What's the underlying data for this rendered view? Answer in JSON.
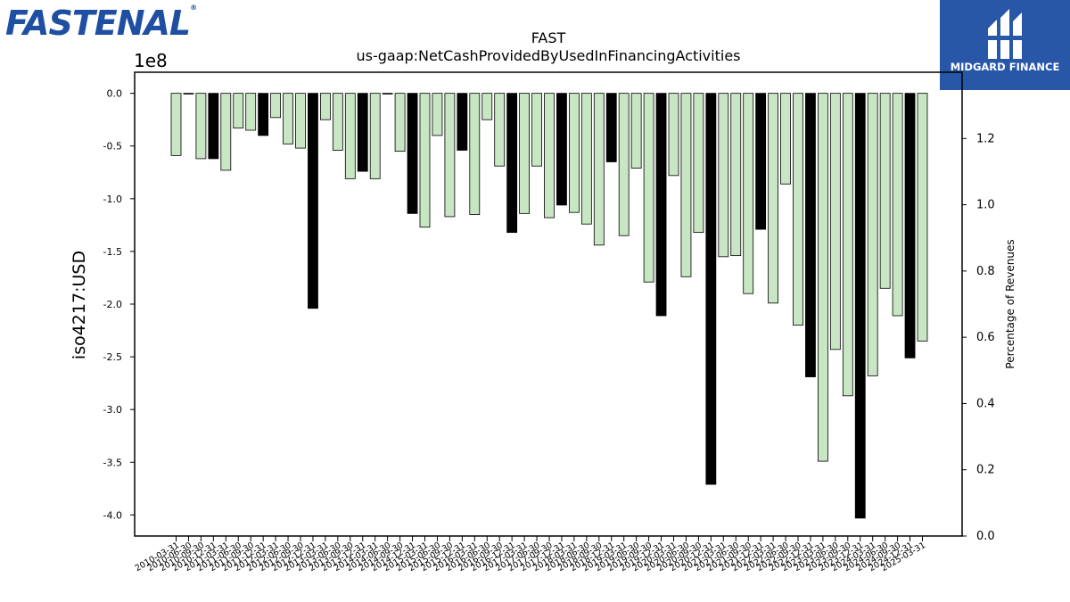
{
  "branding": {
    "left_logo_text": "FASTENAL",
    "right_logo_text": "MIDGARD FINANCE",
    "brand_color": "#1f4fa3",
    "right_logo_bg": "#2857a8"
  },
  "chart_data": {
    "type": "bar",
    "title": "FAST",
    "subtitle": "us-gaap:NetCashProvidedByUsedInFinancingActivities",
    "ylabel": "iso4217:USD",
    "y_offset_label": "1e8",
    "y2label": "Percentage of Revenues",
    "ylim": [
      -4.2,
      0.2
    ],
    "y_ticks": [
      0.0,
      -0.5,
      -1.0,
      -1.5,
      -2.0,
      -2.5,
      -3.0,
      -3.5,
      -4.0
    ],
    "y2lim": [
      0.0,
      1.4
    ],
    "y2_ticks": [
      0.0,
      0.2,
      0.4,
      0.6,
      0.8,
      1.0,
      1.2
    ],
    "colors": {
      "quarterly": "#c8e6c3",
      "annual": "#000000",
      "edge": "#000000"
    },
    "categories": [
      "2010-03-31",
      "2010-06-30",
      "2010-09-30",
      "2010-12-31",
      "2011-03-31",
      "2011-06-30",
      "2011-09-30",
      "2011-12-31",
      "2012-03-31",
      "2012-06-30",
      "2012-09-30",
      "2012-12-31",
      "2013-03-31",
      "2013-06-30",
      "2013-09-30",
      "2013-12-31",
      "2014-03-31",
      "2014-06-30",
      "2014-09-30",
      "2014-12-31",
      "2015-03-31",
      "2015-06-30",
      "2015-09-30",
      "2015-12-31",
      "2016-03-31",
      "2016-06-30",
      "2016-09-30",
      "2016-12-31",
      "2017-03-31",
      "2017-06-30",
      "2017-09-30",
      "2017-12-31",
      "2018-03-31",
      "2018-06-30",
      "2018-09-30",
      "2018-12-31",
      "2019-03-31",
      "2019-06-30",
      "2019-09-30",
      "2019-12-31",
      "2020-03-31",
      "2020-06-30",
      "2020-09-30",
      "2020-12-31",
      "2021-03-31",
      "2021-06-30",
      "2021-09-30",
      "2021-12-31",
      "2022-03-31",
      "2022-06-30",
      "2022-09-30",
      "2022-12-31",
      "2023-03-31",
      "2023-06-30",
      "2023-09-30",
      "2023-12-31",
      "2024-03-31",
      "2024-06-30",
      "2024-09-30",
      "2024-12-31",
      "2025-03-31"
    ],
    "values": [
      -0.59,
      -0.005,
      -0.62,
      -0.62,
      -0.73,
      -0.33,
      -0.35,
      -0.4,
      -0.23,
      -0.48,
      -0.52,
      -2.04,
      -0.25,
      -0.54,
      -0.81,
      -0.74,
      -0.81,
      -0.005,
      -0.55,
      -1.14,
      -1.27,
      -0.4,
      -1.17,
      -0.54,
      -1.15,
      -0.25,
      -0.69,
      -1.32,
      -1.14,
      -0.69,
      -1.18,
      -1.06,
      -1.13,
      -1.24,
      -1.44,
      -0.65,
      -1.35,
      -0.71,
      -1.79,
      -2.11,
      -0.78,
      -1.74,
      -1.32,
      -3.71,
      -1.55,
      -1.54,
      -1.9,
      -1.29,
      -1.99,
      -0.86,
      -2.2,
      -2.69,
      -3.49,
      -2.43,
      -2.87,
      -4.03,
      -2.68,
      -1.85,
      -2.11,
      -2.51,
      -2.35
    ],
    "annual": [
      false,
      false,
      false,
      true,
      false,
      false,
      false,
      true,
      false,
      false,
      false,
      true,
      false,
      false,
      false,
      true,
      false,
      false,
      false,
      true,
      false,
      false,
      false,
      true,
      false,
      false,
      false,
      true,
      false,
      false,
      false,
      true,
      false,
      false,
      false,
      true,
      false,
      false,
      false,
      true,
      false,
      false,
      false,
      true,
      false,
      false,
      false,
      true,
      false,
      false,
      false,
      true,
      false,
      false,
      false,
      true,
      false,
      false,
      false,
      true,
      false
    ]
  }
}
